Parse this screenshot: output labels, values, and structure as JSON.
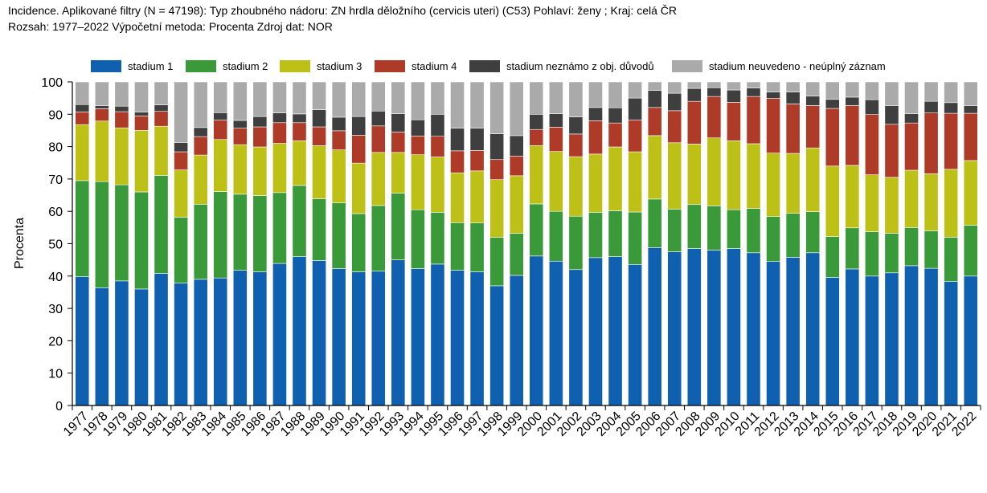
{
  "header": {
    "line1": "Incidence. Aplikované filtry (N = 47198): Typ zhoubného nádoru: ZN hrdla děložního (cervicis uteri) (C53) Pohlaví: ženy ; Kraj: celá ČR",
    "line2": "Rozsah: 1977–2022 Výpočetní metoda: Procenta Zdroj dat: NOR"
  },
  "chart_data": {
    "type": "bar",
    "stacked": true,
    "xlabel": "",
    "ylabel": "Procenta",
    "ylim": [
      0,
      100
    ],
    "yticks": [
      0,
      10,
      20,
      30,
      40,
      50,
      60,
      70,
      80,
      90,
      100
    ],
    "legend_position": "top",
    "grid": false,
    "categories": [
      "1977",
      "1978",
      "1979",
      "1980",
      "1981",
      "1982",
      "1983",
      "1984",
      "1985",
      "1986",
      "1987",
      "1988",
      "1989",
      "1990",
      "1991",
      "1992",
      "1993",
      "1994",
      "1995",
      "1996",
      "1997",
      "1998",
      "1999",
      "2000",
      "2001",
      "2002",
      "2003",
      "2004",
      "2005",
      "2006",
      "2007",
      "2008",
      "2009",
      "2010",
      "2011",
      "2012",
      "2013",
      "2014",
      "2015",
      "2016",
      "2017",
      "2018",
      "2019",
      "2020",
      "2021",
      "2022"
    ],
    "series": [
      {
        "name": "stadium 1",
        "color": "#1060b0",
        "values": [
          39.8,
          36.4,
          38.5,
          36.0,
          40.8,
          37.8,
          39.0,
          39.4,
          41.8,
          41.3,
          43.9,
          46.0,
          44.8,
          42.3,
          41.3,
          41.5,
          45.0,
          42.3,
          43.7,
          41.8,
          41.3,
          37.0,
          40.2,
          46.2,
          44.6,
          42.0,
          45.7,
          46.0,
          43.6,
          48.8,
          47.5,
          48.5,
          48.0,
          48.5,
          47.2,
          44.5,
          45.8,
          47.2,
          39.6,
          42.2,
          40.0,
          41.0,
          43.2,
          42.4,
          38.3,
          40.0
        ]
      },
      {
        "name": "stadium 2",
        "color": "#3a9a3a",
        "values": [
          29.7,
          32.8,
          29.7,
          30.0,
          30.3,
          20.4,
          23.2,
          26.7,
          23.5,
          23.6,
          21.9,
          22.0,
          19.1,
          20.3,
          18.0,
          20.3,
          20.6,
          18.2,
          16.0,
          14.7,
          15.1,
          15.0,
          13.0,
          16.1,
          15.4,
          16.5,
          14.0,
          14.2,
          16.2,
          15.0,
          13.2,
          13.6,
          13.7,
          12.0,
          13.7,
          13.9,
          13.6,
          12.7,
          12.6,
          12.7,
          13.7,
          12.2,
          11.8,
          11.6,
          13.7,
          15.7
        ]
      },
      {
        "name": "stadium 3",
        "color": "#bdc017",
        "values": [
          17.3,
          18.7,
          17.6,
          19.0,
          15.2,
          14.6,
          15.2,
          16.1,
          15.3,
          15.0,
          15.2,
          13.8,
          16.4,
          16.4,
          15.6,
          16.4,
          12.6,
          17.0,
          17.1,
          15.4,
          16.1,
          17.8,
          17.8,
          18.0,
          18.5,
          18.4,
          18.0,
          19.7,
          18.6,
          19.6,
          20.5,
          18.7,
          21.0,
          21.3,
          20.0,
          19.6,
          18.5,
          19.7,
          21.8,
          19.3,
          17.6,
          17.3,
          17.7,
          17.6,
          21.0,
          20.0
        ]
      },
      {
        "name": "stadium 4",
        "color": "#ad3b28",
        "values": [
          3.9,
          3.8,
          5.0,
          4.5,
          4.6,
          5.6,
          5.7,
          6.0,
          5.1,
          6.2,
          6.4,
          5.6,
          5.8,
          5.9,
          8.6,
          8.2,
          6.3,
          5.8,
          6.4,
          6.8,
          6.3,
          6.2,
          6.1,
          5.0,
          7.5,
          7.0,
          10.3,
          7.4,
          9.8,
          8.7,
          9.9,
          13.2,
          12.8,
          11.9,
          14.6,
          16.9,
          15.3,
          13.1,
          17.8,
          18.5,
          18.6,
          16.4,
          14.6,
          18.8,
          17.3,
          14.6
        ]
      },
      {
        "name": "stadium neznámo z obj. důvodů",
        "color": "#3f3f3f",
        "values": [
          2.3,
          1.0,
          1.7,
          1.2,
          2.0,
          2.9,
          2.8,
          2.3,
          2.4,
          3.2,
          3.0,
          2.7,
          5.3,
          4.2,
          5.8,
          4.6,
          5.7,
          5.0,
          6.8,
          7.0,
          6.9,
          8.0,
          6.3,
          4.7,
          4.2,
          5.3,
          4.1,
          4.7,
          6.8,
          5.3,
          5.4,
          4.0,
          2.7,
          3.8,
          2.6,
          2.0,
          3.7,
          2.9,
          2.8,
          2.6,
          4.6,
          5.8,
          2.9,
          3.6,
          3.3,
          2.4
        ]
      },
      {
        "name": "stadium neuvedeno - neúplný záznam",
        "color": "#aaaaaa",
        "values": [
          7.0,
          7.3,
          7.5,
          9.3,
          7.1,
          18.7,
          14.1,
          9.5,
          11.9,
          10.7,
          9.6,
          9.9,
          8.6,
          10.9,
          10.7,
          9.0,
          9.8,
          11.7,
          10.0,
          14.3,
          14.3,
          16.0,
          16.6,
          10.0,
          9.8,
          10.8,
          7.9,
          8.0,
          5.0,
          2.6,
          3.5,
          2.0,
          1.8,
          2.5,
          1.9,
          3.1,
          3.1,
          4.4,
          5.4,
          4.7,
          5.5,
          7.3,
          9.8,
          6.0,
          6.4,
          7.3
        ]
      }
    ]
  }
}
